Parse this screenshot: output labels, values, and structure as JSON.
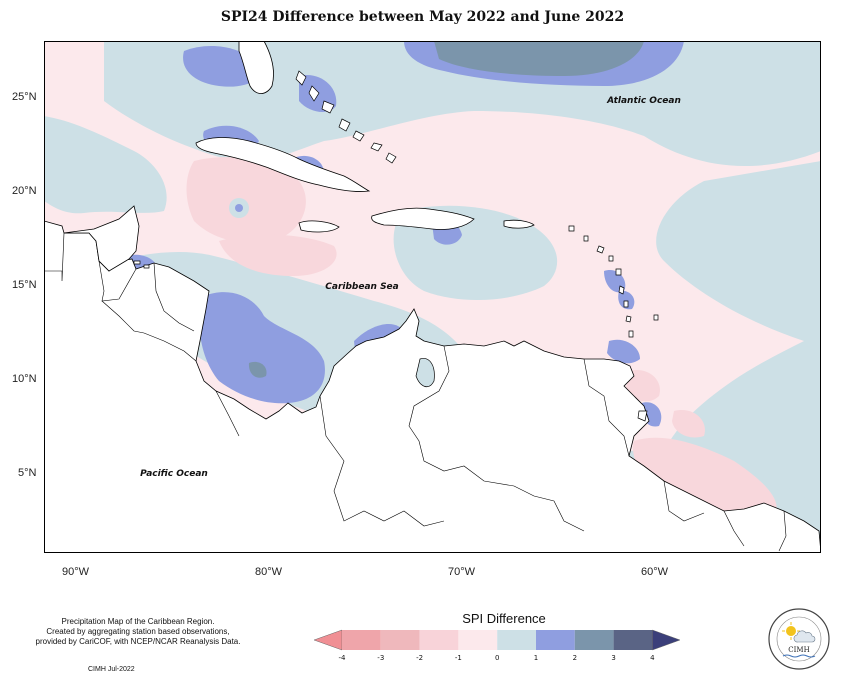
{
  "title": "SPI24 Difference between May 2022 and June 2022",
  "map": {
    "labels": {
      "atlantic": "Atlantic Ocean",
      "caribbean": "Caribbean Sea",
      "pacific": "Pacific Ocean"
    },
    "lat_ticks": [
      "25°N",
      "20°N",
      "15°N",
      "10°N",
      "5°N"
    ],
    "lon_ticks": [
      "90°W",
      "80°W",
      "70°W",
      "60°W"
    ]
  },
  "footer": {
    "line1": "Precipitation Map of the Caribbean Region.",
    "line2": "Created by aggregating station based observations,",
    "line3": "provided by CariCOF, with NCEP/NCAR Reanalysis Data.",
    "credit": "CIMH Jul-2022"
  },
  "legend": {
    "title": "SPI Difference",
    "ticks": [
      "-4",
      "-3",
      "-2",
      "-1",
      "0",
      "1",
      "2",
      "3",
      "4"
    ],
    "colors": [
      "#f08f94",
      "#efb2b6",
      "#f8d3d9",
      "#fce9ec",
      "#cde0e6",
      "#8f9ee0",
      "#7b95ab",
      "#5a6485"
    ]
  },
  "logo": {
    "text": "CIMH"
  },
  "colors": {
    "light_pink": "#fce9ec",
    "pink": "#f8d7dc",
    "light_blue": "#cde0e6",
    "blue": "#8f9ee0",
    "slate": "#7b95ab",
    "land": "#ffffff"
  }
}
